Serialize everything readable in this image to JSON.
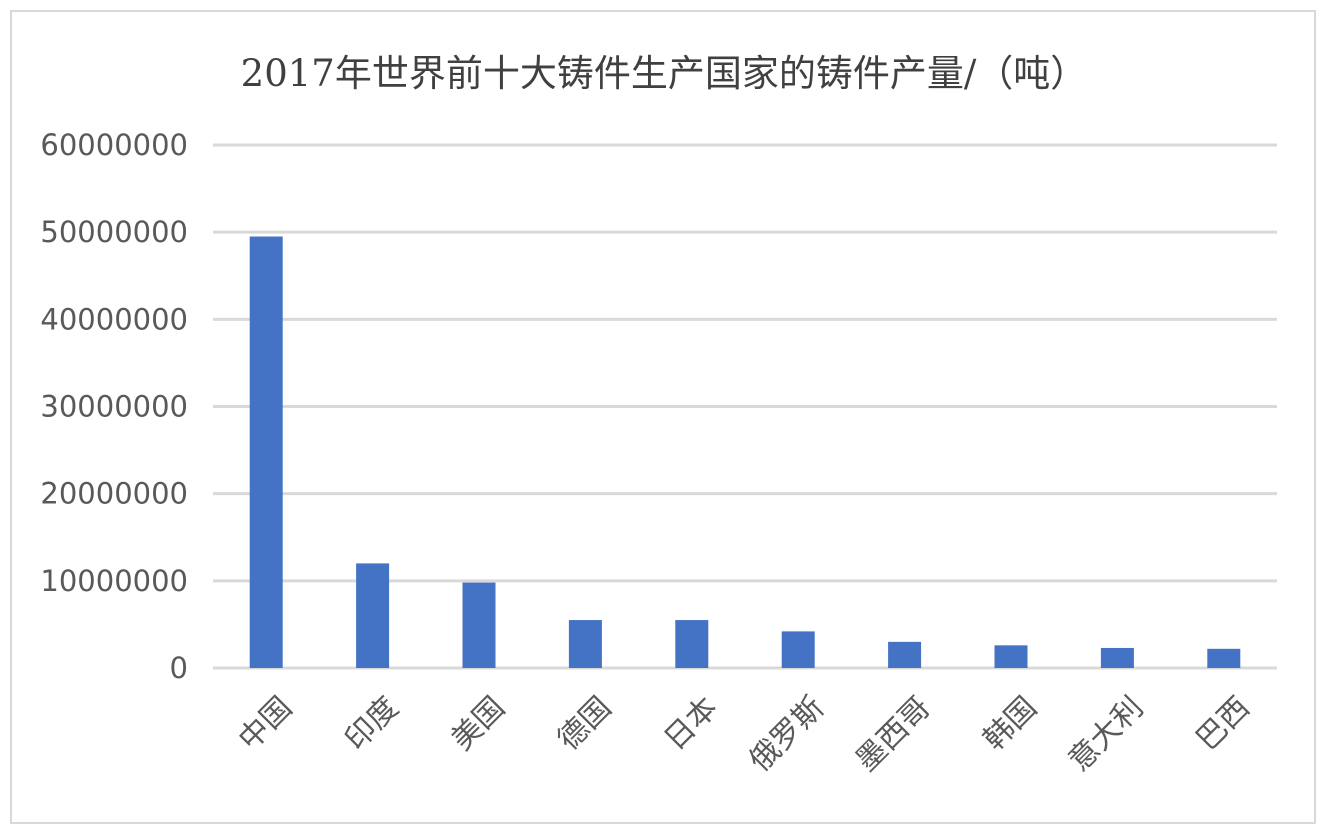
{
  "chart_data": {
    "type": "bar",
    "title": "2017年世界前十大铸件生产国家的铸件产量/（吨）",
    "xlabel": "",
    "ylabel": "",
    "categories": [
      "中国",
      "印度",
      "美国",
      "德国",
      "日本",
      "俄罗斯",
      "墨西哥",
      "韩国",
      "意大利",
      "巴西"
    ],
    "values": [
      49500000,
      12000000,
      9800000,
      5500000,
      5500000,
      4200000,
      3000000,
      2600000,
      2300000,
      2200000
    ],
    "ylim": [
      0,
      60000000
    ],
    "yticks": [
      "0",
      "10000000",
      "20000000",
      "30000000",
      "40000000",
      "50000000",
      "60000000"
    ],
    "grid": true,
    "legend": "none",
    "bar_color": "#4472c4"
  }
}
